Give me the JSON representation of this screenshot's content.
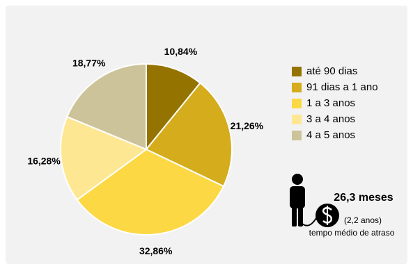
{
  "chart_data": {
    "type": "pie",
    "categories": [
      "até 90 dias",
      "91 dias a 1 ano",
      "1 a 3 anos",
      "3 a 4 anos",
      "4 a 5 anos"
    ],
    "values": [
      10.84,
      21.26,
      32.86,
      16.28,
      18.77
    ],
    "value_labels": [
      "10,84%",
      "21,26%",
      "32,86%",
      "16,28%",
      "18,77%"
    ],
    "colors": [
      "#957300",
      "#d4ac1c",
      "#fdd845",
      "#fee792",
      "#cdc39a"
    ],
    "annotations": {
      "value": "26,3 meses",
      "sub": "(2,2 anos)",
      "caption": "tempo médio de atraso"
    }
  }
}
